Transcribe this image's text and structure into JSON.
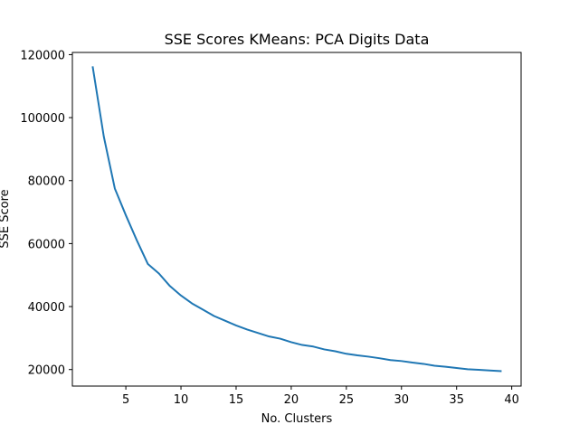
{
  "chart_data": {
    "type": "line",
    "title": "SSE Scores KMeans: PCA Digits Data",
    "xlabel": "No. Clusters",
    "ylabel": "SSE Score",
    "xlim": [
      0.15,
      40.85
    ],
    "ylim": [
      14750,
      120700
    ],
    "xticks": [
      5,
      10,
      15,
      20,
      25,
      30,
      35,
      40
    ],
    "yticks": [
      20000,
      40000,
      60000,
      80000,
      100000,
      120000
    ],
    "grid": false,
    "series": [
      {
        "color": "#1f77b4",
        "x": [
          2,
          3,
          4,
          5,
          6,
          7,
          8,
          9,
          10,
          11,
          12,
          13,
          14,
          15,
          16,
          17,
          18,
          19,
          20,
          21,
          22,
          23,
          24,
          25,
          26,
          27,
          28,
          29,
          30,
          31,
          32,
          33,
          34,
          35,
          36,
          37,
          38,
          39
        ],
        "y": [
          116000,
          94000,
          77500,
          69000,
          61000,
          53500,
          50500,
          46500,
          43500,
          41000,
          39000,
          37000,
          35500,
          34000,
          32700,
          31600,
          30500,
          29800,
          28700,
          27800,
          27300,
          26400,
          25800,
          25000,
          24500,
          24100,
          23600,
          23000,
          22700,
          22200,
          21800,
          21200,
          20900,
          20500,
          20100,
          19900,
          19700,
          19500
        ]
      }
    ]
  }
}
